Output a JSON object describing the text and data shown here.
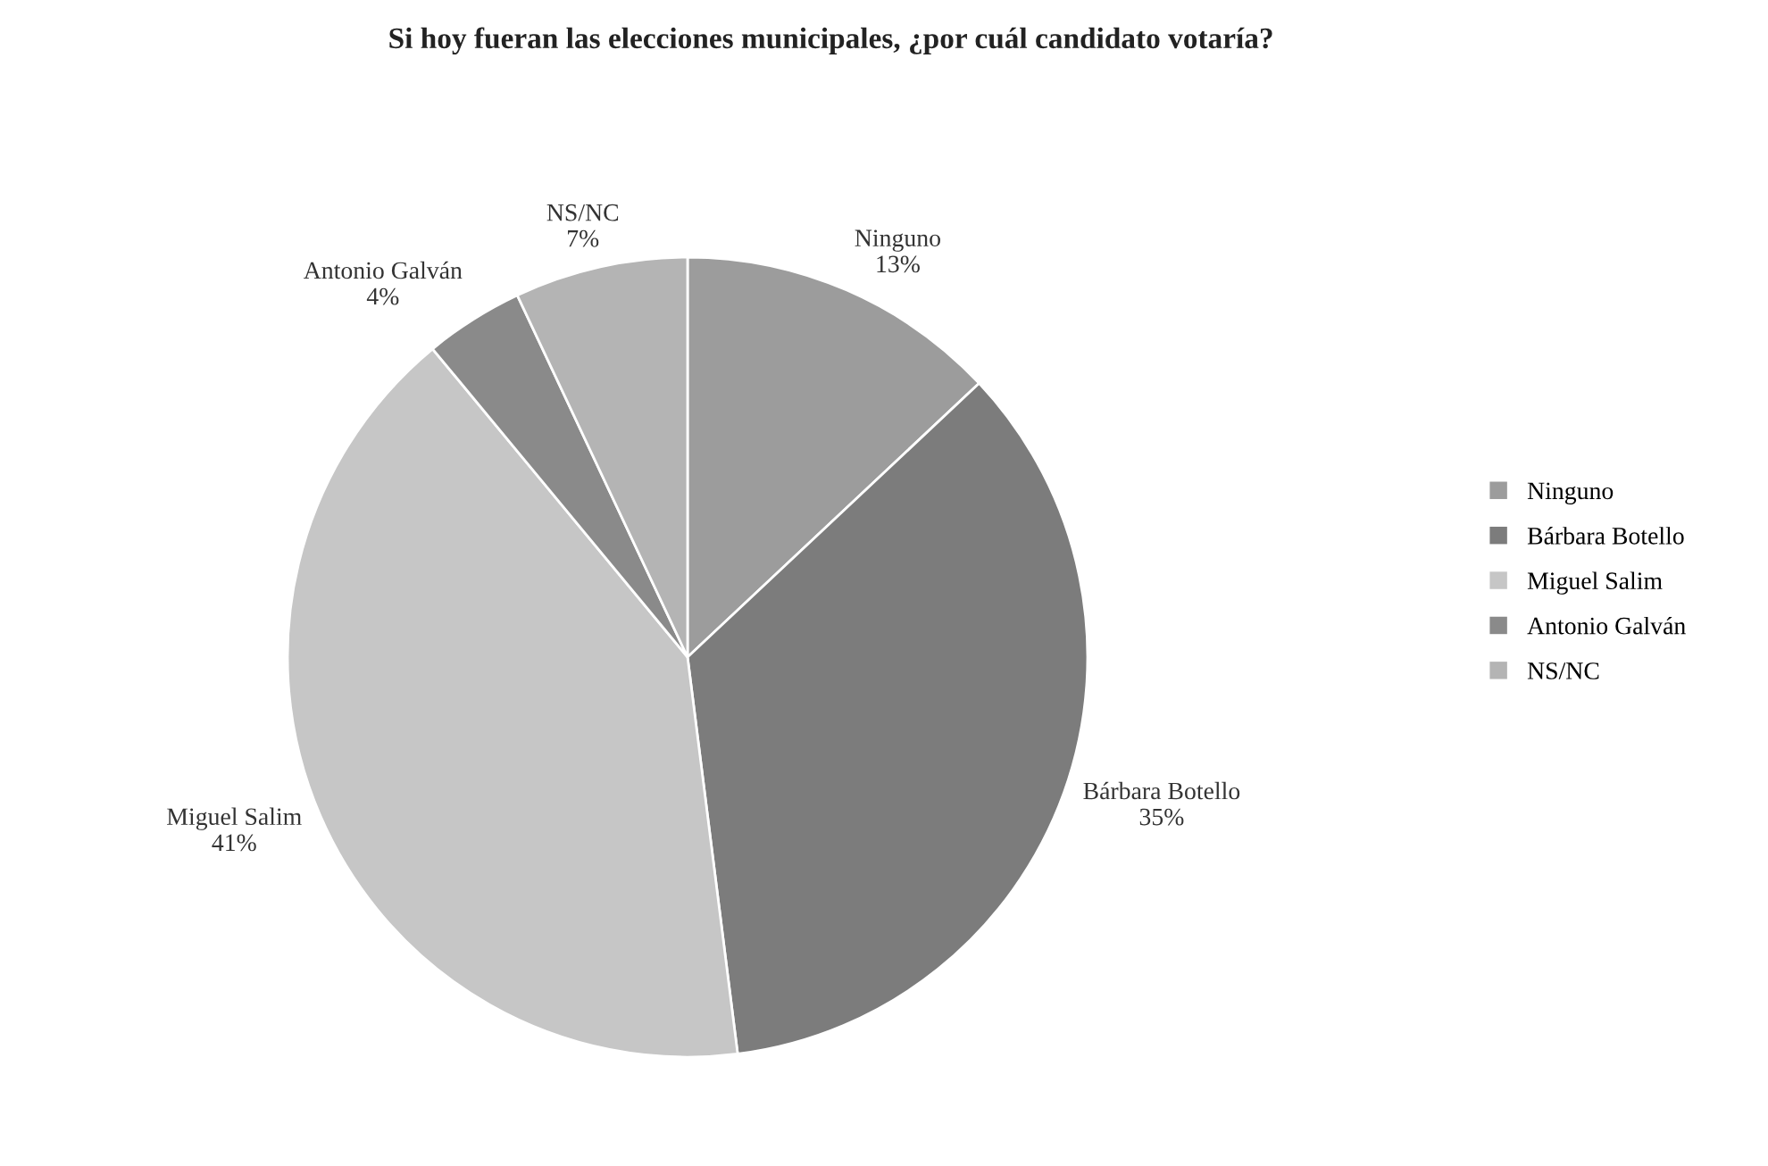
{
  "chart_data": {
    "type": "pie",
    "title": "Si hoy fueran las elecciones municipales, ¿por cuál candidato votaría?",
    "categories": [
      "Ninguno",
      "Bárbara Botello",
      "Miguel Salim",
      "Antonio Galván",
      "NS/NC"
    ],
    "values": [
      13,
      35,
      41,
      4,
      7
    ],
    "value_labels": [
      "13%",
      "35%",
      "41%",
      "4%",
      "7%"
    ],
    "colors": [
      "#9c9c9c",
      "#7c7c7c",
      "#c6c6c6",
      "#8a8a8a",
      "#b4b4b4"
    ],
    "legend": "right"
  }
}
